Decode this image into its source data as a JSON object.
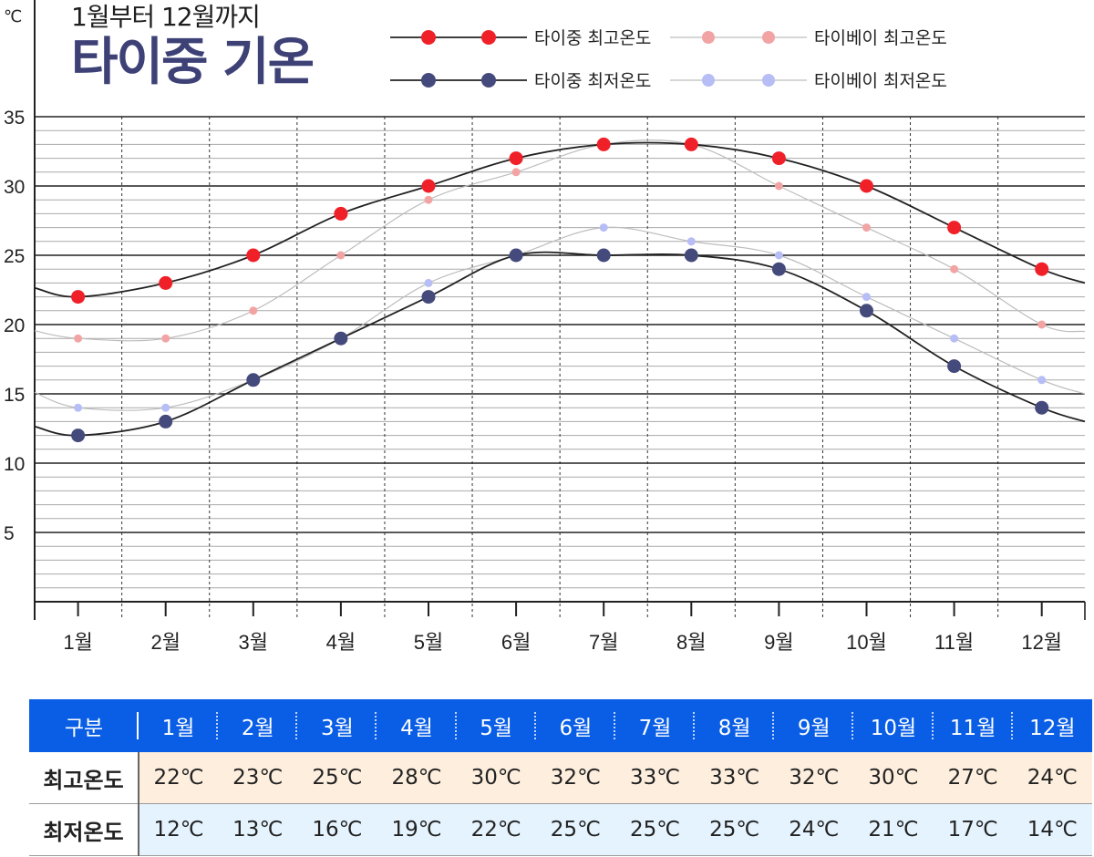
{
  "header": {
    "subtitle": "1월부터 12월까지",
    "title": "타이중 기온",
    "unit": "℃"
  },
  "chart_data": {
    "type": "line",
    "categories": [
      "1월",
      "2월",
      "3월",
      "4월",
      "5월",
      "6월",
      "7월",
      "8월",
      "9월",
      "10월",
      "11월",
      "12월"
    ],
    "series": [
      {
        "name": "타이중 최고온도",
        "values": [
          22,
          23,
          25,
          28,
          30,
          32,
          33,
          33,
          32,
          30,
          27,
          24
        ],
        "color": "#f02028",
        "line_color": "#222222"
      },
      {
        "name": "타이베이 최고온도",
        "values": [
          19,
          19,
          21,
          25,
          29,
          31,
          33,
          33,
          30,
          27,
          24,
          20
        ],
        "color": "#f2a4a4",
        "line_color": "#bdbdbd"
      },
      {
        "name": "타이중 최저온도",
        "values": [
          12,
          13,
          16,
          19,
          22,
          25,
          25,
          25,
          24,
          21,
          17,
          14
        ],
        "color": "#454a7c",
        "line_color": "#222222"
      },
      {
        "name": "타이베이 최저온도",
        "values": [
          14,
          14,
          16,
          19,
          23,
          25,
          27,
          26,
          25,
          22,
          19,
          16
        ],
        "color": "#b7bdf5",
        "line_color": "#bdbdbd"
      }
    ],
    "ylim": [
      0,
      35
    ],
    "yticks": [
      5,
      10,
      15,
      20,
      25,
      30,
      35
    ],
    "grid": true,
    "legend_placement": "top-right"
  },
  "table": {
    "header_label": "구분",
    "months": [
      "1월",
      "2월",
      "3월",
      "4월",
      "5월",
      "6월",
      "7월",
      "8월",
      "9월",
      "10월",
      "11월",
      "12월"
    ],
    "rows": [
      {
        "label": "최고온도",
        "values": [
          "22℃",
          "23℃",
          "25℃",
          "28℃",
          "30℃",
          "32℃",
          "33℃",
          "33℃",
          "32℃",
          "30℃",
          "27℃",
          "24℃"
        ]
      },
      {
        "label": "최저온도",
        "values": [
          "12℃",
          "13℃",
          "16℃",
          "19℃",
          "22℃",
          "25℃",
          "25℃",
          "25℃",
          "24℃",
          "21℃",
          "17℃",
          "14℃"
        ]
      }
    ]
  }
}
